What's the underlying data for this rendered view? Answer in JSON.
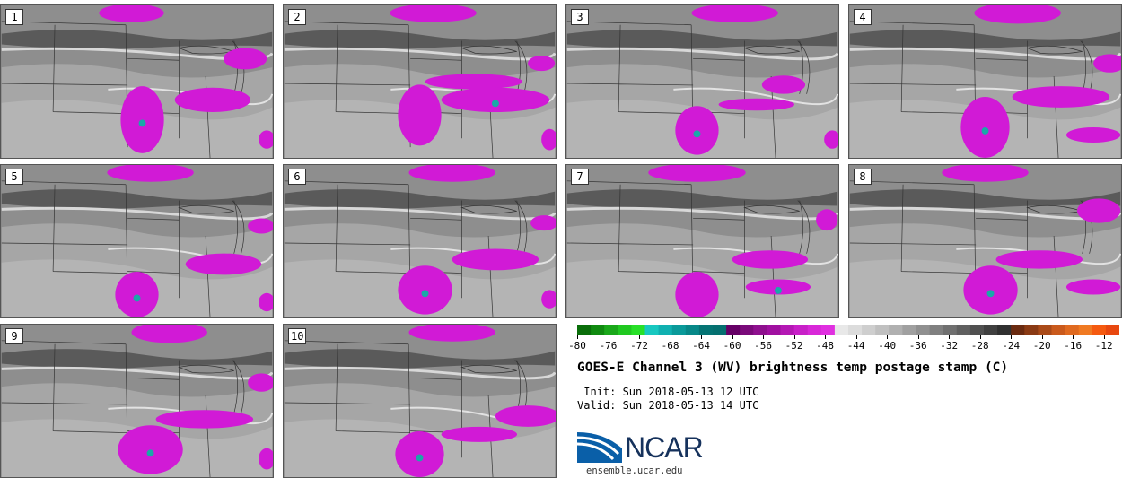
{
  "panels": [
    {
      "label": "1",
      "blobs": [
        [
          0.48,
          0.05,
          0.12,
          0.06
        ],
        [
          0.9,
          0.35,
          0.08,
          0.07
        ],
        [
          0.78,
          0.62,
          0.14,
          0.08
        ],
        [
          0.52,
          0.75,
          0.08,
          0.22
        ],
        [
          0.98,
          0.88,
          0.03,
          0.06
        ]
      ]
    },
    {
      "label": "2",
      "blobs": [
        [
          0.55,
          0.05,
          0.16,
          0.06
        ],
        [
          0.95,
          0.38,
          0.05,
          0.05
        ],
        [
          0.7,
          0.5,
          0.18,
          0.05
        ],
        [
          0.78,
          0.62,
          0.2,
          0.08
        ],
        [
          0.5,
          0.72,
          0.08,
          0.2
        ],
        [
          0.98,
          0.88,
          0.03,
          0.07
        ]
      ]
    },
    {
      "label": "3",
      "blobs": [
        [
          0.62,
          0.05,
          0.16,
          0.06
        ],
        [
          0.8,
          0.52,
          0.08,
          0.06
        ],
        [
          0.7,
          0.65,
          0.14,
          0.04
        ],
        [
          0.48,
          0.82,
          0.08,
          0.16
        ],
        [
          0.98,
          0.88,
          0.03,
          0.06
        ]
      ]
    },
    {
      "label": "4",
      "blobs": [
        [
          0.62,
          0.05,
          0.16,
          0.07
        ],
        [
          0.96,
          0.38,
          0.06,
          0.06
        ],
        [
          0.78,
          0.6,
          0.18,
          0.07
        ],
        [
          0.5,
          0.8,
          0.09,
          0.2
        ],
        [
          0.9,
          0.85,
          0.1,
          0.05
        ]
      ]
    },
    {
      "label": "5",
      "blobs": [
        [
          0.55,
          0.05,
          0.16,
          0.06
        ],
        [
          0.96,
          0.4,
          0.05,
          0.05
        ],
        [
          0.82,
          0.65,
          0.14,
          0.07
        ],
        [
          0.5,
          0.85,
          0.08,
          0.15
        ],
        [
          0.98,
          0.9,
          0.03,
          0.06
        ]
      ]
    },
    {
      "label": "6",
      "blobs": [
        [
          0.62,
          0.05,
          0.16,
          0.06
        ],
        [
          0.96,
          0.38,
          0.05,
          0.05
        ],
        [
          0.78,
          0.62,
          0.16,
          0.07
        ],
        [
          0.52,
          0.82,
          0.1,
          0.16
        ],
        [
          0.98,
          0.88,
          0.03,
          0.06
        ]
      ]
    },
    {
      "label": "7",
      "blobs": [
        [
          0.48,
          0.05,
          0.18,
          0.06
        ],
        [
          0.96,
          0.36,
          0.04,
          0.07
        ],
        [
          0.75,
          0.62,
          0.14,
          0.06
        ],
        [
          0.78,
          0.8,
          0.12,
          0.05
        ],
        [
          0.48,
          0.85,
          0.08,
          0.15
        ]
      ]
    },
    {
      "label": "8",
      "blobs": [
        [
          0.5,
          0.05,
          0.16,
          0.06
        ],
        [
          0.92,
          0.3,
          0.08,
          0.08
        ],
        [
          0.7,
          0.62,
          0.16,
          0.06
        ],
        [
          0.52,
          0.82,
          0.1,
          0.16
        ],
        [
          0.9,
          0.8,
          0.1,
          0.05
        ]
      ]
    },
    {
      "label": "9",
      "blobs": [
        [
          0.62,
          0.05,
          0.14,
          0.07
        ],
        [
          0.96,
          0.38,
          0.05,
          0.06
        ],
        [
          0.75,
          0.62,
          0.18,
          0.06
        ],
        [
          0.55,
          0.82,
          0.12,
          0.16
        ],
        [
          0.98,
          0.88,
          0.03,
          0.07
        ]
      ]
    },
    {
      "label": "10",
      "blobs": [
        [
          0.62,
          0.05,
          0.16,
          0.06
        ],
        [
          0.9,
          0.6,
          0.12,
          0.07
        ],
        [
          0.72,
          0.72,
          0.14,
          0.05
        ],
        [
          0.5,
          0.85,
          0.09,
          0.15
        ]
      ]
    }
  ],
  "colorbar": {
    "ticks": [
      "-80",
      "-76",
      "-72",
      "-68",
      "-64",
      "-60",
      "-56",
      "-52",
      "-48",
      "-44",
      "-40",
      "-36",
      "-32",
      "-28",
      "-24",
      "-20",
      "-16",
      "-12"
    ],
    "colors": [
      "#0a6e0a",
      "#108a10",
      "#1aa81a",
      "#20c820",
      "#28e028",
      "#18c8c0",
      "#10b0b0",
      "#0a9a9a",
      "#078888",
      "#057474",
      "#057070",
      "#660066",
      "#7a0a7a",
      "#8e108e",
      "#a010a0",
      "#b418b4",
      "#c820c8",
      "#d828d8",
      "#e030e0",
      "#e8e8e8",
      "#dcdcdc",
      "#cecece",
      "#c0c0c0",
      "#b0b0b0",
      "#a0a0a0",
      "#909090",
      "#808080",
      "#707070",
      "#606060",
      "#505050",
      "#404040",
      "#303030",
      "#6a2a10",
      "#8a3a14",
      "#aa4a18",
      "#ca5a1c",
      "#e06a20",
      "#f07a22",
      "#f55a10",
      "#e84810"
    ]
  },
  "title": "GOES-E Channel 3 (WV) brightness temp postage stamp (C)",
  "init_line": " Init: Sun 2018-05-13 12 UTC",
  "valid_line": "Valid: Sun 2018-05-13 14 UTC",
  "logo": {
    "text": "NCAR",
    "url": "ensemble.ucar.edu"
  },
  "colors": {
    "magenta": "#d11ad6",
    "cyan": "#1aa8a8",
    "land": "#8c8c8c"
  }
}
